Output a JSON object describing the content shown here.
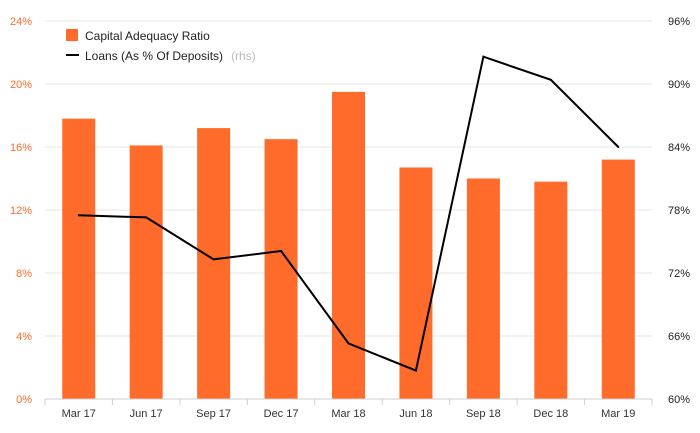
{
  "chart_data": {
    "type": "bar",
    "categories": [
      "Mar 17",
      "Jun 17",
      "Sep 17",
      "Dec 17",
      "Mar 18",
      "Jun 18",
      "Sep 18",
      "Dec 18",
      "Mar 19"
    ],
    "series": [
      {
        "name": "Capital Adequacy Ratio",
        "type": "bar",
        "axis": "left",
        "color": "#ff6b2b",
        "values": [
          17.8,
          16.1,
          17.2,
          16.5,
          19.5,
          14.7,
          14.0,
          13.8,
          15.2
        ]
      },
      {
        "name": "Loans (As % Of Deposits)",
        "name_suffix": "(rhs)",
        "type": "line",
        "axis": "right",
        "color": "#000000",
        "values": [
          77.5,
          77.3,
          73.3,
          74.1,
          65.3,
          62.7,
          92.6,
          90.4,
          84.0
        ]
      }
    ],
    "left_axis": {
      "ylim": [
        0,
        24
      ],
      "ticks": [
        0,
        4,
        8,
        12,
        16,
        20,
        24
      ],
      "tick_labels": [
        "0%",
        "4%",
        "8%",
        "12%",
        "16%",
        "20%",
        "24%"
      ],
      "color": "#ff6b2b"
    },
    "right_axis": {
      "ylim": [
        60,
        96
      ],
      "ticks": [
        60,
        66,
        72,
        78,
        84,
        90,
        96
      ],
      "tick_labels": [
        "60%",
        "66%",
        "72%",
        "78%",
        "84%",
        "90%",
        "96%"
      ],
      "color": "#222222"
    },
    "grid": true,
    "legend": "top-left"
  }
}
